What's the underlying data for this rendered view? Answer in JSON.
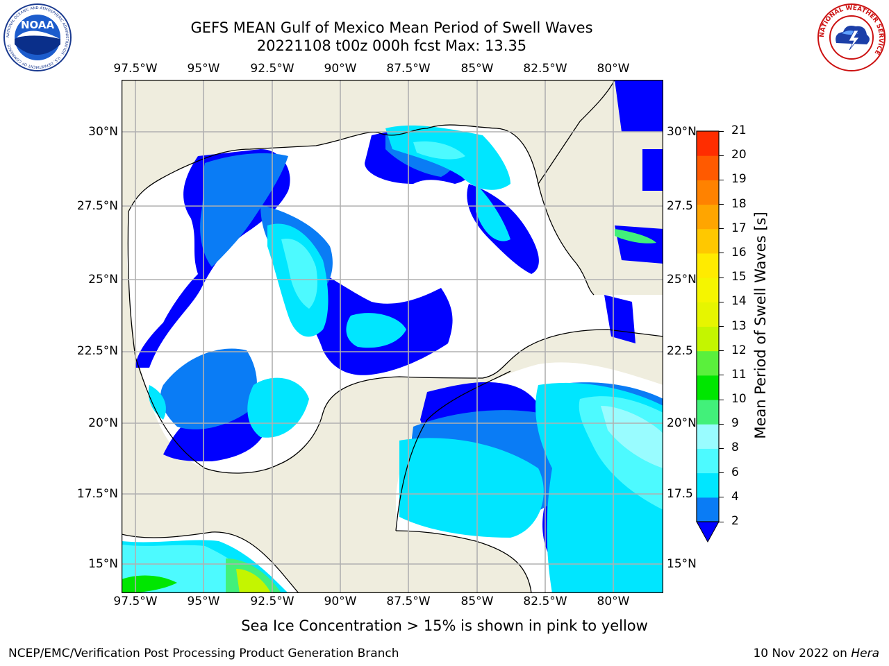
{
  "header": {
    "title_line1": "GEFS MEAN Gulf of Mexico Mean Period of Swell Waves",
    "title_line2": "20221108 t00z 000h fcst   Max: 13.35"
  },
  "logos": {
    "left_logo_text": "NOAA",
    "left_logo_ring": "NATIONAL OCEANIC AND ATMOSPHERIC ADMINISTRATION · U.S. DEPARTMENT OF COMMERCE",
    "right_logo_ring": "NATIONAL WEATHER SERVICE"
  },
  "map": {
    "lon_labels": [
      "97.5°W",
      "95°W",
      "92.5°W",
      "90°W",
      "87.5°W",
      "85°W",
      "82.5°W",
      "80°W"
    ],
    "lat_labels_left": [
      "30°N",
      "27.5°N",
      "25°N",
      "22.5°N",
      "20°N",
      "17.5°N",
      "15°N"
    ],
    "lat_labels_right": [
      "30°N",
      "27.5",
      "25°N",
      "22.5",
      "20°N",
      "17.5",
      "15°N"
    ],
    "land_color": "#efedde",
    "ocean_missing_color": "#ffffff",
    "grid_color": "#b0b0b0"
  },
  "colorbar": {
    "title": "Mean Period of Swell Waves [s]",
    "ticks": [
      "2",
      "4",
      "6",
      "8",
      "9",
      "10",
      "11",
      "12",
      "13",
      "14",
      "15",
      "16",
      "17",
      "18",
      "19",
      "20",
      "21"
    ],
    "colors": [
      "#0a7cf5",
      "#00e6ff",
      "#4dfaff",
      "#99fcff",
      "#42f07a",
      "#00e600",
      "#5af03c",
      "#c4f500",
      "#e6f500",
      "#f5f500",
      "#ffeb00",
      "#ffc800",
      "#ffa500",
      "#ff8200",
      "#ff5a00",
      "#ff2d00"
    ],
    "extend_color": "#0000ff"
  },
  "notes": {
    "sea_ice": "Sea Ice Concentration > 15% is shown in pink to yellow"
  },
  "footer": {
    "left": "NCEP/EMC/Verification Post Processing Product Generation Branch",
    "right_date": "10 Nov 2022 on",
    "right_host": "Hera"
  }
}
